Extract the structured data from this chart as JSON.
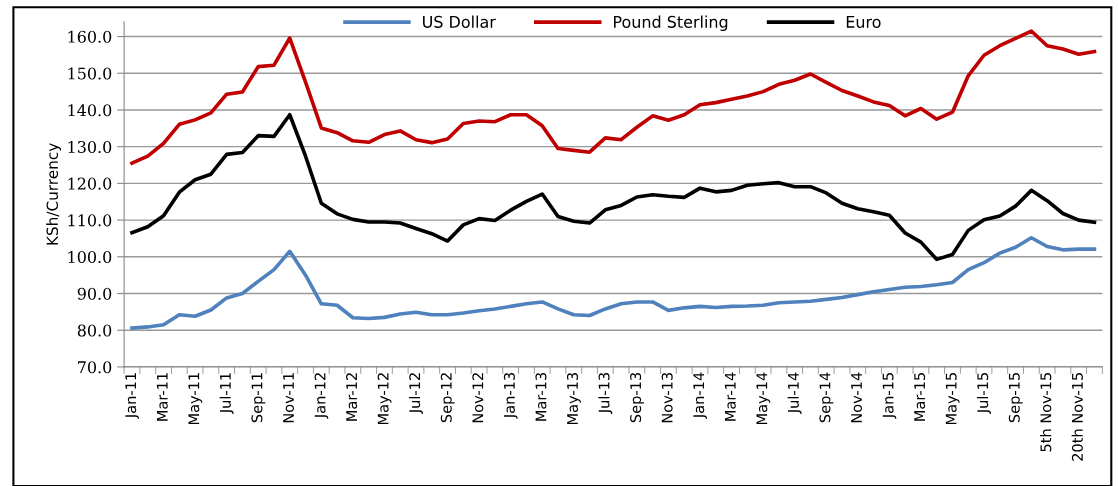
{
  "chart_data": {
    "type": "line",
    "ylabel": "KSh/Currency",
    "categories": [
      "Jan-11",
      null,
      "Mar-11",
      null,
      "May-11",
      null,
      "Jul-11",
      null,
      "Sep-11",
      null,
      "Nov-11",
      null,
      "Jan-12",
      null,
      "Mar-12",
      null,
      "May-12",
      null,
      "Jul-12",
      null,
      "Sep-12",
      null,
      "Nov-12",
      null,
      "Jan-13",
      null,
      "Mar-13",
      null,
      "May-13",
      null,
      "Jul-13",
      null,
      "Sep-13",
      null,
      "Nov-13",
      null,
      "Jan-14",
      null,
      "Mar-14",
      null,
      "May-14",
      null,
      "Jul-14",
      null,
      "Sep-14",
      null,
      "Nov-14",
      null,
      "Jan-15",
      null,
      "Mar-15",
      null,
      "May-15",
      null,
      "Jul-15",
      null,
      "Sep-15",
      null,
      "5th Nov-15",
      null,
      "20th Nov-15",
      null
    ],
    "series": [
      {
        "name": "US Dollar",
        "color": "#4f81bd",
        "values": [
          80.6,
          80.9,
          81.5,
          84.2,
          83.8,
          85.5,
          88.8,
          90.0,
          93.3,
          96.5,
          101.5,
          95.0,
          87.2,
          86.8,
          83.4,
          83.2,
          83.5,
          84.4,
          84.9,
          84.2,
          84.2,
          84.7,
          85.3,
          85.8,
          86.5,
          87.2,
          87.7,
          85.8,
          84.2,
          84.0,
          85.8,
          87.2,
          87.7,
          87.7,
          85.4,
          86.1,
          86.5,
          86.2,
          86.5,
          86.6,
          86.8,
          87.5,
          87.7,
          87.9,
          88.4,
          88.9,
          89.7,
          90.5,
          91.1,
          91.7,
          91.9,
          92.4,
          93.0,
          96.5,
          98.4,
          101.0,
          102.6,
          105.2,
          102.8,
          101.9,
          102.1,
          102.1
        ]
      },
      {
        "name": "Pound Sterling",
        "color": "#c00000",
        "values": [
          125.5,
          127.4,
          130.9,
          136.1,
          137.3,
          139.2,
          144.3,
          144.9,
          151.8,
          152.2,
          159.6,
          147.6,
          135.1,
          133.8,
          131.6,
          131.2,
          133.3,
          134.3,
          131.9,
          131.1,
          132.1,
          136.3,
          137.0,
          136.8,
          138.7,
          138.7,
          135.7,
          129.5,
          129.0,
          128.5,
          132.4,
          131.9,
          135.3,
          138.4,
          137.2,
          138.7,
          141.4,
          142.0,
          142.9,
          143.8,
          145.0,
          147.0,
          148.1,
          149.8,
          147.5,
          145.3,
          143.8,
          142.2,
          141.2,
          138.4,
          140.4,
          137.5,
          139.4,
          149.3,
          154.9,
          157.5,
          159.5,
          161.5,
          157.5,
          156.6,
          155.2,
          155.9
        ]
      },
      {
        "name": "Euro",
        "color": "#000000",
        "values": [
          106.6,
          108.2,
          111.2,
          117.6,
          121.0,
          122.5,
          127.9,
          128.4,
          133.0,
          132.8,
          138.7,
          127.4,
          114.6,
          111.7,
          110.2,
          109.5,
          109.5,
          109.2,
          107.7,
          106.3,
          104.3,
          108.7,
          110.4,
          109.9,
          112.7,
          115.1,
          117.1,
          111.0,
          109.7,
          109.2,
          112.8,
          114.0,
          116.3,
          116.9,
          116.5,
          116.2,
          118.7,
          117.7,
          118.1,
          119.5,
          119.9,
          120.2,
          119.1,
          119.1,
          117.4,
          114.6,
          113.1,
          112.3,
          111.3,
          106.5,
          104.0,
          99.3,
          100.6,
          107.2,
          110.1,
          111.1,
          113.8,
          118.1,
          115.3,
          111.8,
          110.0,
          109.4
        ]
      }
    ],
    "ylim": [
      70,
      164
    ],
    "yticks": [
      {
        "value": 70,
        "label": "70.0"
      },
      {
        "value": 80,
        "label": "80.0"
      },
      {
        "value": 90,
        "label": "90.0"
      },
      {
        "value": 100,
        "label": "100.0"
      },
      {
        "value": 110,
        "label": "110.0"
      },
      {
        "value": 120,
        "label": "120.0"
      },
      {
        "value": 130,
        "label": "130.0"
      },
      {
        "value": 140,
        "label": "140.0"
      },
      {
        "value": 150,
        "label": "150.0"
      },
      {
        "value": 160,
        "label": "160.0"
      }
    ],
    "grid": "y",
    "legend": "top",
    "marker": "none",
    "line_style": "solid"
  }
}
